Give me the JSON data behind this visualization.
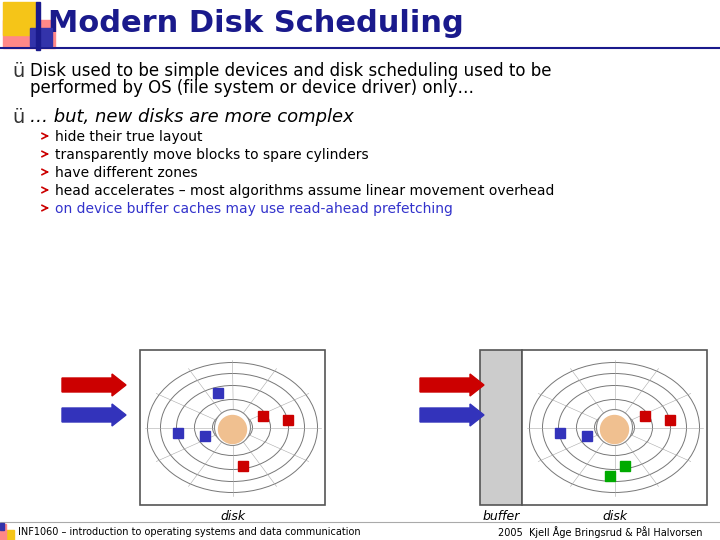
{
  "title": "Modern Disk Scheduling",
  "title_color": "#1a1a8c",
  "bg_color": "#ffffff",
  "bullet1_line1": "Disk used to be simple devices and disk scheduling used to be",
  "bullet1_line2": "performed by OS (file system or device driver) only…",
  "bullet2": "… but, new disks are more complex",
  "subbullets": [
    "hide their true layout",
    "transparently move blocks to spare cylinders",
    "have different zones",
    "head accelerates – most algorithms assume linear movement overhead",
    "on device buffer caches may use read-ahead prefetching"
  ],
  "subbullet_colors": [
    "#000000",
    "#000000",
    "#000000",
    "#000000",
    "#3333cc"
  ],
  "footer_left": "INF1060 – introduction to operating systems and data communication",
  "footer_right": "2005  Kjell Åge Bringsrud & Pål Halvorsen",
  "arrow_color_red": "#cc0000",
  "arrow_color_blue": "#3333bb",
  "header_line_color": "#1a1a8c",
  "deco_yellow": "#f5c518",
  "deco_pink": "#ff8888",
  "deco_blue": "#3333aa",
  "deco_darkblue": "#1a1a8c"
}
